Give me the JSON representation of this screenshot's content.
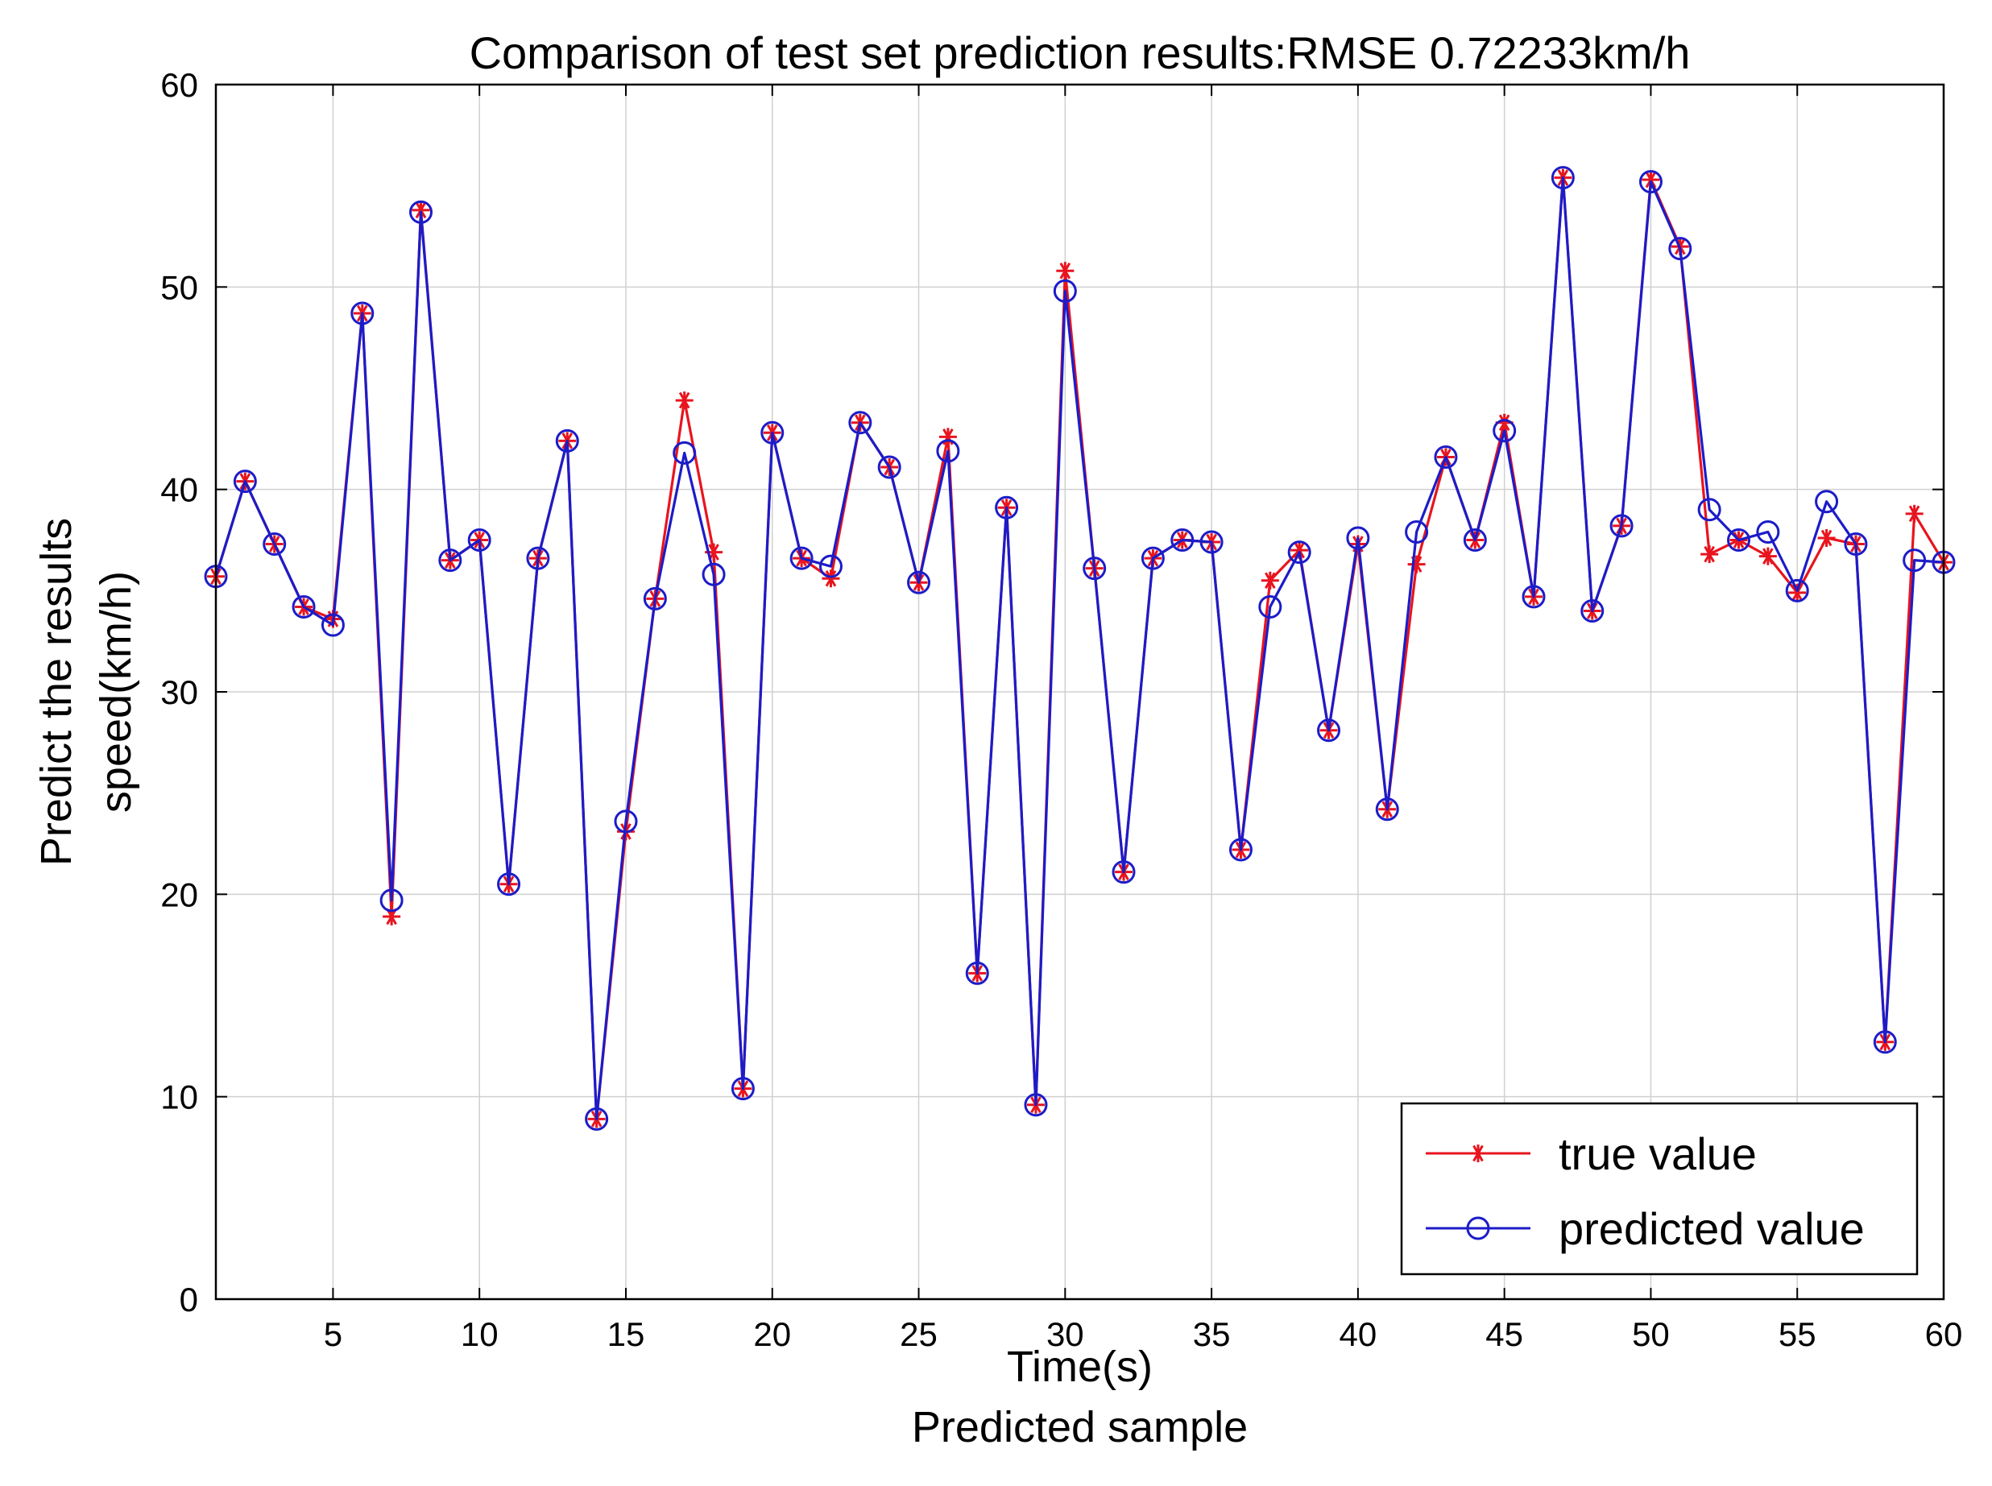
{
  "chart_data": {
    "type": "line",
    "title": "Comparison of test set prediction results:RMSE 0.72233km/h",
    "xlabel": "Time(s)",
    "xlabel2": "Predicted sample",
    "ylabel_line1": "Predict the results",
    "ylabel_line2": "speed(km/h)",
    "xlim": [
      1,
      60
    ],
    "ylim": [
      0,
      60
    ],
    "grid": true,
    "legend_position": "bottom-right",
    "x_ticks": [
      5,
      10,
      15,
      20,
      25,
      30,
      35,
      40,
      45,
      50,
      55,
      60
    ],
    "y_ticks": [
      0,
      10,
      20,
      30,
      40,
      50,
      60
    ],
    "x": [
      1,
      2,
      3,
      4,
      5,
      6,
      7,
      8,
      9,
      10,
      11,
      12,
      13,
      14,
      15,
      16,
      17,
      18,
      19,
      20,
      21,
      22,
      23,
      24,
      25,
      26,
      27,
      28,
      29,
      30,
      31,
      32,
      33,
      34,
      35,
      36,
      37,
      38,
      39,
      40,
      41,
      42,
      43,
      44,
      45,
      46,
      47,
      48,
      49,
      50,
      51,
      52,
      53,
      54,
      55,
      56,
      57,
      58,
      59,
      60
    ],
    "series": [
      {
        "name": "true value",
        "color": "#e8141e",
        "marker": "star",
        "values": [
          35.7,
          40.4,
          37.3,
          34.2,
          33.6,
          48.7,
          18.9,
          53.8,
          36.5,
          37.5,
          20.5,
          36.6,
          42.4,
          8.9,
          23.1,
          34.6,
          44.4,
          36.9,
          10.4,
          42.8,
          36.6,
          35.6,
          43.3,
          41.1,
          35.4,
          42.6,
          16.1,
          39.1,
          9.6,
          50.8,
          36.1,
          21.1,
          36.6,
          37.5,
          37.4,
          22.2,
          35.5,
          37.0,
          28.1,
          37.3,
          24.2,
          36.3,
          41.6,
          37.5,
          43.3,
          34.7,
          55.4,
          34.0,
          38.2,
          55.3,
          52.0,
          36.8,
          37.5,
          36.7,
          34.9,
          37.6,
          37.3,
          12.7,
          38.8,
          36.4
        ]
      },
      {
        "name": "predicted value",
        "color": "#1c1cc8",
        "marker": "circle",
        "values": [
          35.7,
          40.4,
          37.3,
          34.2,
          33.3,
          48.7,
          19.7,
          53.7,
          36.5,
          37.5,
          20.5,
          36.6,
          42.4,
          8.9,
          23.6,
          34.6,
          41.8,
          35.8,
          10.4,
          42.8,
          36.6,
          36.2,
          43.3,
          41.1,
          35.4,
          41.9,
          16.1,
          39.1,
          9.6,
          49.8,
          36.1,
          21.1,
          36.6,
          37.5,
          37.4,
          22.2,
          34.2,
          36.9,
          28.1,
          37.6,
          24.2,
          37.9,
          41.6,
          37.5,
          42.9,
          34.7,
          55.4,
          34.0,
          38.2,
          55.2,
          51.9,
          39.0,
          37.5,
          37.9,
          35.0,
          39.4,
          37.3,
          12.7,
          36.5,
          36.4
        ]
      }
    ]
  }
}
